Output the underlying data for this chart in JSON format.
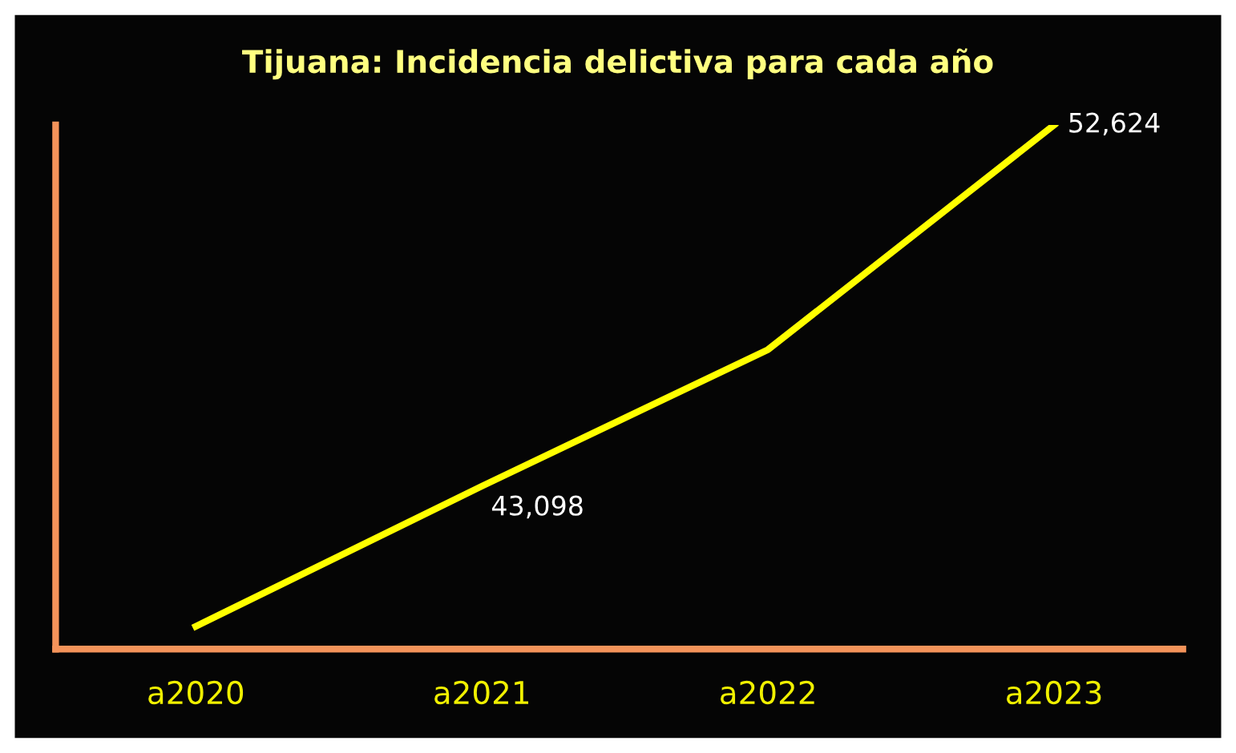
{
  "chart_data": {
    "type": "line",
    "title": "Tijuana: Incidencia delictiva para cada año",
    "categories": [
      "a2020",
      "a2021",
      "a2022",
      "a2023"
    ],
    "series": [
      {
        "color": "#ffff00",
        "values": [
          39400,
          43098,
          46700,
          52624
        ],
        "value_labels": [
          null,
          "43,098",
          null,
          "52,624"
        ]
      }
    ],
    "ylim": [
      38800,
      52624
    ],
    "grid": false,
    "marker": "none",
    "line_style": "solid"
  }
}
